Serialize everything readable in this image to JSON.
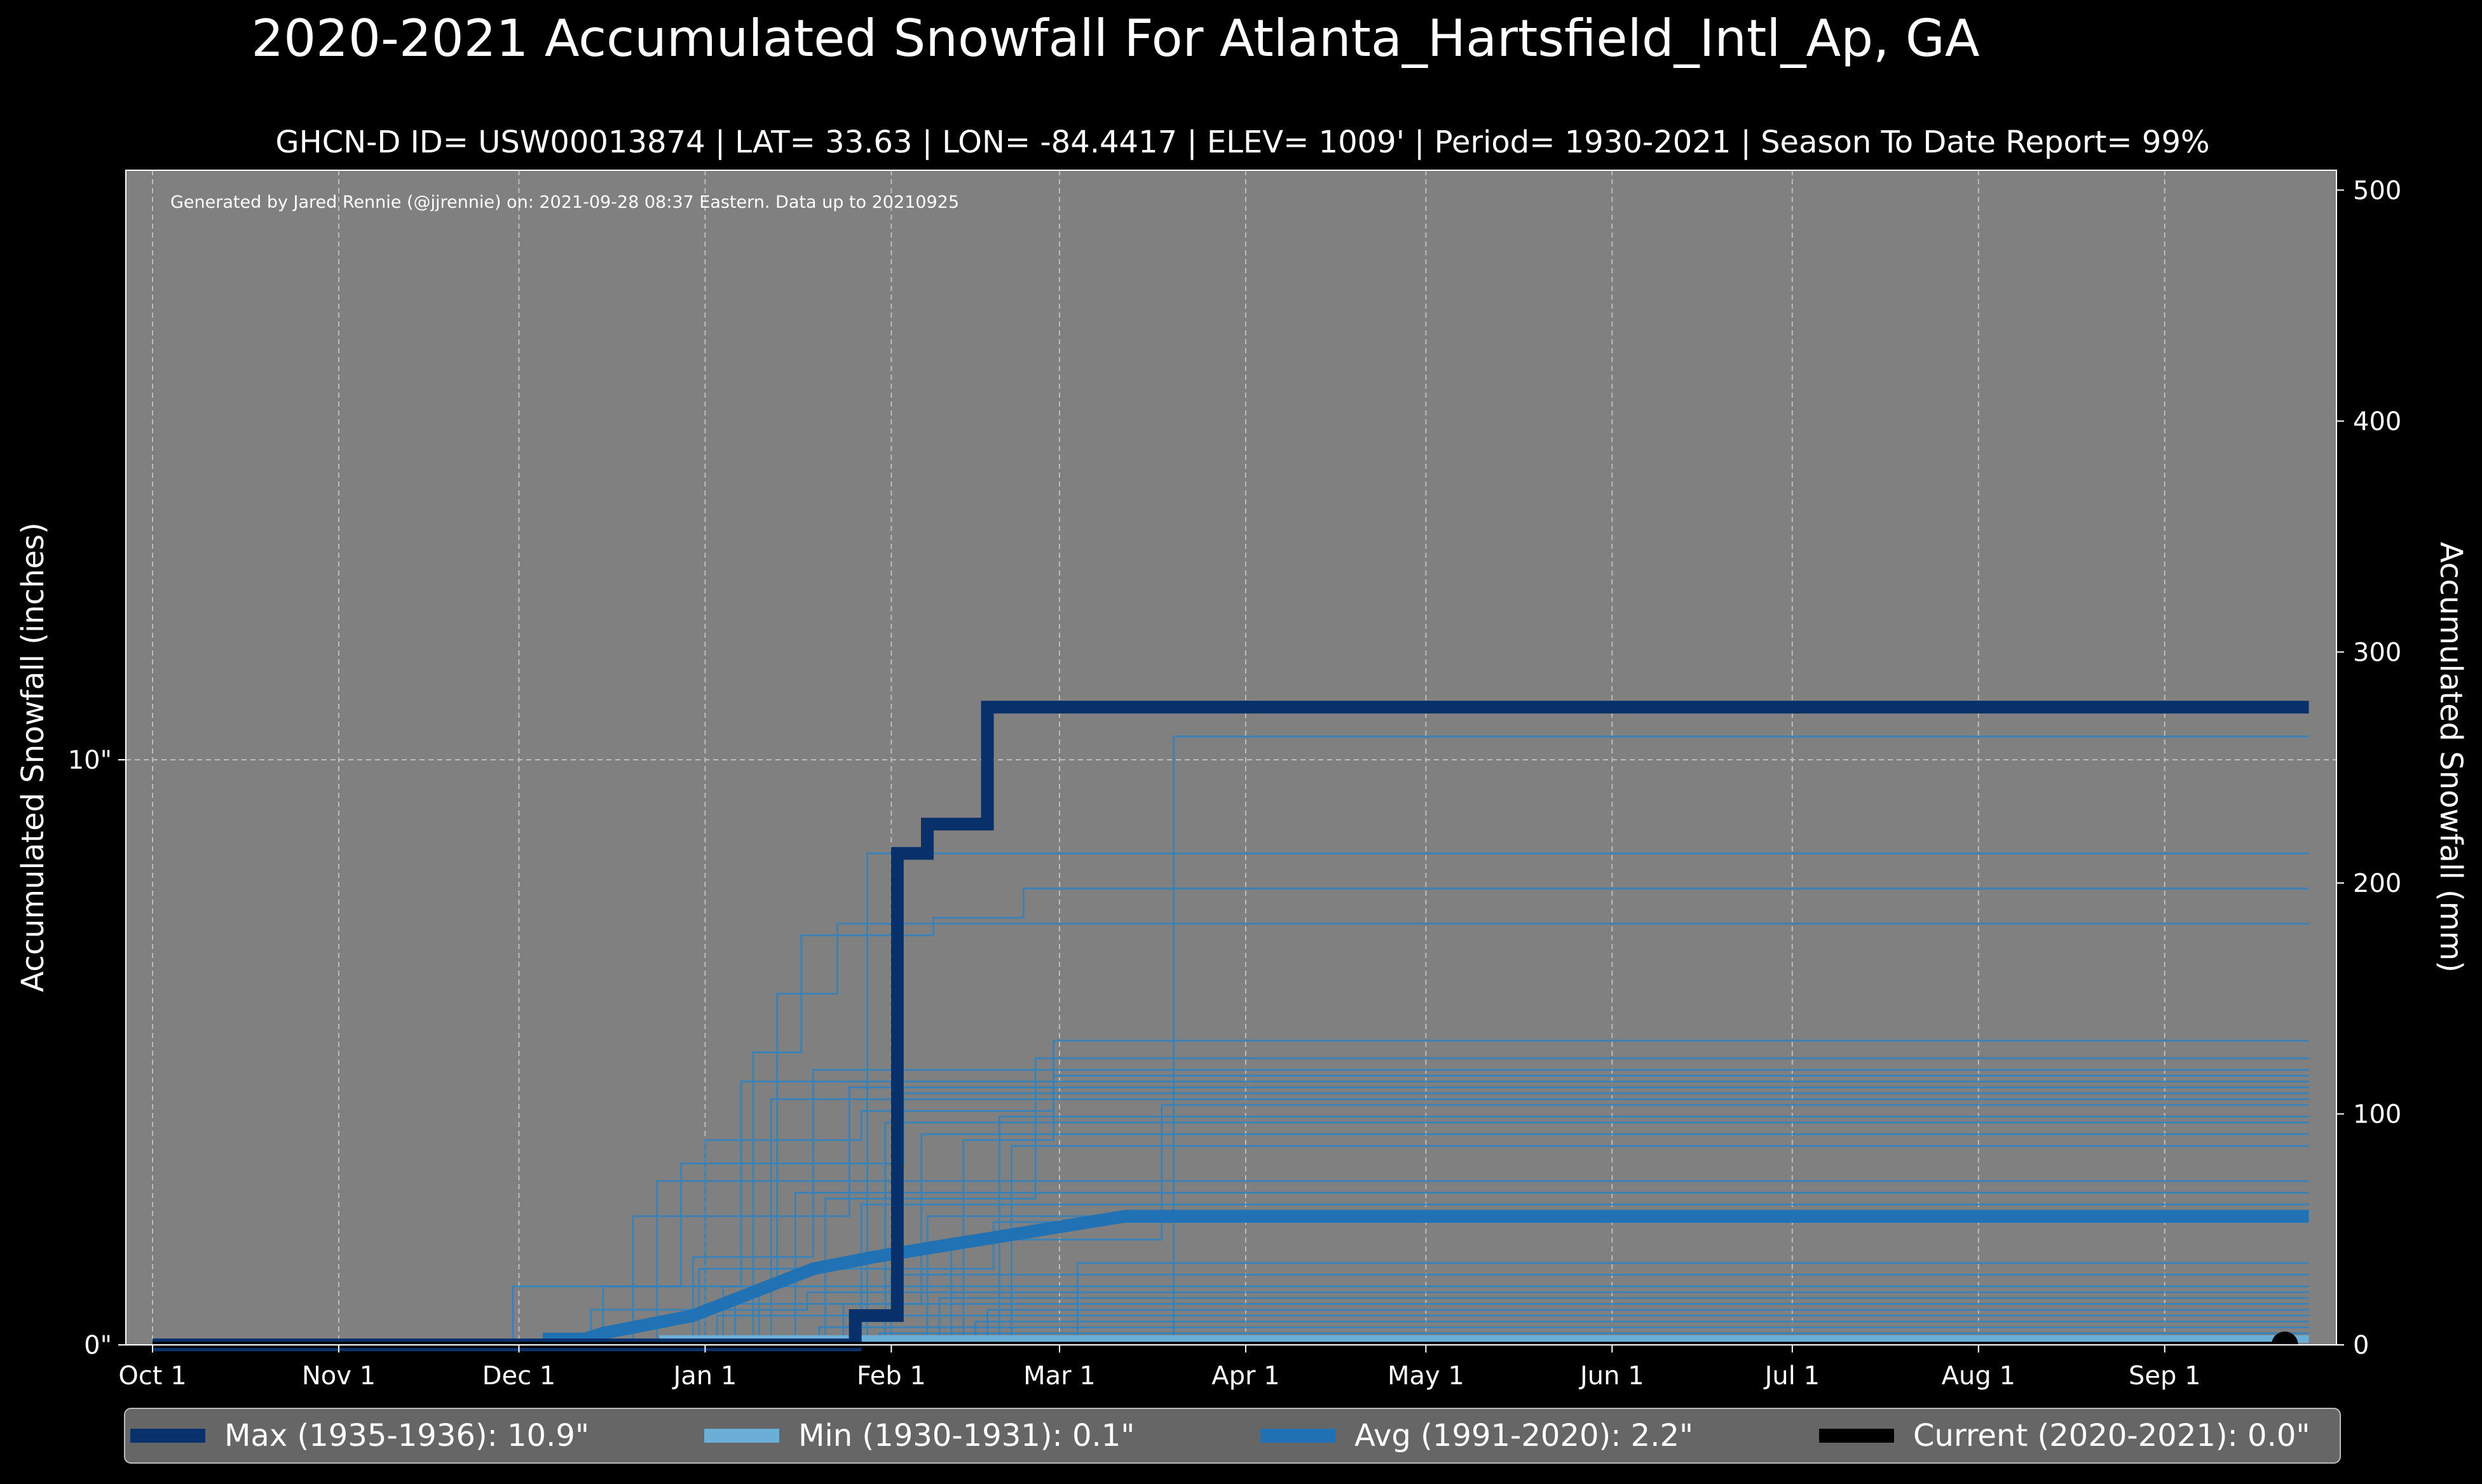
{
  "chart_data": {
    "type": "line",
    "title": "2020-2021 Accumulated Snowfall For Atlanta_Hartsfield_Intl_Ap, GA",
    "subtitle": "GHCN-D ID= USW00013874 | LAT= 33.63 | LON= -84.4417 | ELEV= 1009' | Period= 1930-2021 | Season To Date Report= 99%",
    "credit": "Generated by Jared Rennie (@jjrennie) on: 2021-09-28 08:37 Eastern. Data up to 20210925",
    "ylabel_left": "Accumulated Snowfall (inches)",
    "ylabel_right": "Accumulated Snowfall (mm)",
    "x_ticks": [
      "Oct 1",
      "Nov 1",
      "Dec 1",
      "Jan 1",
      "Feb 1",
      "Mar 1",
      "Apr 1",
      "May 1",
      "Jun 1",
      "Jul 1",
      "Aug 1",
      "Sep 1"
    ],
    "y_ticks_left": [
      "0\"",
      "10\""
    ],
    "y_ticks_right": [
      "0",
      "100",
      "200",
      "300",
      "400",
      "500"
    ],
    "ylim_inches": [
      0,
      20
    ],
    "grid": true,
    "legend_placement": "bottom",
    "colors": {
      "max": "#08306b",
      "min": "#6baed6",
      "avg": "#2171b5",
      "current": "#000000",
      "history": "#3182bd",
      "panel": "#808080"
    },
    "series": [
      {
        "name": "Max (1935-1936)",
        "legend": "Max (1935-1936):   10.9\"",
        "role": "max",
        "points": [
          [
            0,
            0
          ],
          [
            117,
            0
          ],
          [
            117,
            0.5
          ],
          [
            124,
            0.5
          ],
          [
            124,
            8.4
          ],
          [
            129,
            8.4
          ],
          [
            129,
            8.9
          ],
          [
            139,
            8.9
          ],
          [
            139,
            10.9
          ],
          [
            359,
            10.9
          ]
        ]
      },
      {
        "name": "Min (1930-1931)",
        "legend": "Min (1930-1931):    0.1\"",
        "role": "min",
        "points": [
          [
            0,
            0
          ],
          [
            85,
            0
          ],
          [
            85,
            0.1
          ],
          [
            359,
            0.1
          ]
        ]
      },
      {
        "name": "Avg (1991-2020)",
        "legend": "Avg (1991-2020):    2.2\"",
        "role": "avg",
        "points": [
          [
            0,
            0
          ],
          [
            66,
            0
          ],
          [
            66,
            0.1
          ],
          [
            72,
            0.1
          ],
          [
            75,
            0.2
          ],
          [
            80,
            0.3
          ],
          [
            85,
            0.4
          ],
          [
            90,
            0.5
          ],
          [
            95,
            0.7
          ],
          [
            100,
            0.9
          ],
          [
            105,
            1.1
          ],
          [
            110,
            1.3
          ],
          [
            115,
            1.4
          ],
          [
            120,
            1.5
          ],
          [
            126,
            1.6
          ],
          [
            132,
            1.7
          ],
          [
            138,
            1.8
          ],
          [
            144,
            1.9
          ],
          [
            150,
            2.0
          ],
          [
            156,
            2.1
          ],
          [
            162,
            2.2
          ],
          [
            359,
            2.2
          ]
        ]
      },
      {
        "name": "Current (2020-2021)",
        "legend": "Current (2020-2021): 0.0\"",
        "role": "current",
        "points": [
          [
            0,
            0
          ],
          [
            355,
            0
          ]
        ]
      }
    ],
    "history_series": [
      [
        [
          0,
          0
        ],
        [
          119,
          0
        ],
        [
          119,
          8.4
        ],
        [
          359,
          8.4
        ]
      ],
      [
        [
          0,
          0
        ],
        [
          170,
          0
        ],
        [
          170,
          10.4
        ],
        [
          359,
          10.4
        ]
      ],
      [
        [
          0,
          0
        ],
        [
          100,
          0
        ],
        [
          100,
          5.0
        ],
        [
          108,
          5.0
        ],
        [
          108,
          7.0
        ],
        [
          130,
          7.0
        ],
        [
          130,
          7.3
        ],
        [
          145,
          7.3
        ],
        [
          145,
          7.8
        ],
        [
          359,
          7.8
        ]
      ],
      [
        [
          0,
          0
        ],
        [
          95,
          0
        ],
        [
          95,
          1.0
        ],
        [
          104,
          1.0
        ],
        [
          104,
          6.0
        ],
        [
          114,
          6.0
        ],
        [
          114,
          7.2
        ],
        [
          359,
          7.2
        ]
      ],
      [
        [
          0,
          0
        ],
        [
          92,
          0
        ],
        [
          92,
          3.5
        ],
        [
          118,
          3.5
        ],
        [
          118,
          4.0
        ],
        [
          150,
          4.0
        ],
        [
          150,
          5.2
        ],
        [
          359,
          5.2
        ]
      ],
      [
        [
          0,
          0
        ],
        [
          90,
          0
        ],
        [
          90,
          1.5
        ],
        [
          110,
          1.5
        ],
        [
          110,
          4.7
        ],
        [
          359,
          4.7
        ]
      ],
      [
        [
          0,
          0
        ],
        [
          75,
          0
        ],
        [
          75,
          1.0
        ],
        [
          98,
          1.0
        ],
        [
          98,
          4.5
        ],
        [
          359,
          4.5
        ]
      ],
      [
        [
          0,
          0
        ],
        [
          80,
          0
        ],
        [
          80,
          2.2
        ],
        [
          116,
          2.2
        ],
        [
          116,
          4.4
        ],
        [
          359,
          4.4
        ]
      ],
      [
        [
          0,
          0
        ],
        [
          60,
          0
        ],
        [
          60,
          1.0
        ],
        [
          88,
          1.0
        ],
        [
          88,
          3.1
        ],
        [
          125,
          3.1
        ],
        [
          125,
          4.3
        ],
        [
          359,
          4.3
        ]
      ],
      [
        [
          0,
          0
        ],
        [
          112,
          0
        ],
        [
          112,
          2.5
        ],
        [
          147,
          2.5
        ],
        [
          147,
          4.9
        ],
        [
          359,
          4.9
        ]
      ],
      [
        [
          0,
          0
        ],
        [
          103,
          0
        ],
        [
          103,
          4.2
        ],
        [
          359,
          4.2
        ]
      ],
      [
        [
          0,
          0
        ],
        [
          135,
          0
        ],
        [
          135,
          3.5
        ],
        [
          150,
          3.5
        ],
        [
          150,
          4.6
        ],
        [
          359,
          4.6
        ]
      ],
      [
        [
          0,
          0
        ],
        [
          133,
          0
        ],
        [
          133,
          1.8
        ],
        [
          168,
          1.8
        ],
        [
          168,
          4.1
        ],
        [
          359,
          4.1
        ]
      ],
      [
        [
          0,
          0
        ],
        [
          141,
          0
        ],
        [
          141,
          3.9
        ],
        [
          359,
          3.9
        ]
      ],
      [
        [
          0,
          0
        ],
        [
          122,
          0
        ],
        [
          122,
          3.8
        ],
        [
          359,
          3.8
        ]
      ],
      [
        [
          0,
          0
        ],
        [
          97,
          0
        ],
        [
          97,
          0.7
        ],
        [
          128,
          0.7
        ],
        [
          128,
          3.6
        ],
        [
          359,
          3.6
        ]
      ],
      [
        [
          0,
          0
        ],
        [
          143,
          0
        ],
        [
          143,
          3.4
        ],
        [
          359,
          3.4
        ]
      ],
      [
        [
          0,
          0
        ],
        [
          84,
          0
        ],
        [
          84,
          2.8
        ],
        [
          359,
          2.8
        ]
      ],
      [
        [
          0,
          0
        ],
        [
          107,
          0
        ],
        [
          107,
          2.6
        ],
        [
          359,
          2.6
        ]
      ],
      [
        [
          0,
          0
        ],
        [
          118,
          0
        ],
        [
          118,
          2.4
        ],
        [
          359,
          2.4
        ]
      ],
      [
        [
          0,
          0
        ],
        [
          129,
          0
        ],
        [
          129,
          2.2
        ],
        [
          359,
          2.2
        ]
      ],
      [
        [
          0,
          0
        ],
        [
          91,
          0
        ],
        [
          91,
          1.3
        ],
        [
          140,
          1.3
        ],
        [
          140,
          2.1
        ],
        [
          359,
          2.1
        ]
      ],
      [
        [
          0,
          0
        ],
        [
          154,
          0
        ],
        [
          154,
          1.4
        ],
        [
          359,
          1.4
        ]
      ],
      [
        [
          0,
          0
        ],
        [
          123,
          0
        ],
        [
          123,
          1.2
        ],
        [
          359,
          1.2
        ]
      ],
      [
        [
          0,
          0
        ],
        [
          101,
          0
        ],
        [
          101,
          1.0
        ],
        [
          359,
          1.0
        ]
      ],
      [
        [
          0,
          0
        ],
        [
          73,
          0
        ],
        [
          73,
          0.6
        ],
        [
          109,
          0.6
        ],
        [
          109,
          0.9
        ],
        [
          359,
          0.9
        ]
      ],
      [
        [
          0,
          0
        ],
        [
          131,
          0
        ],
        [
          131,
          0.8
        ],
        [
          359,
          0.8
        ]
      ],
      [
        [
          0,
          0
        ],
        [
          115,
          0
        ],
        [
          115,
          0.7
        ],
        [
          359,
          0.7
        ]
      ],
      [
        [
          0,
          0
        ],
        [
          139,
          0
        ],
        [
          139,
          0.6
        ],
        [
          359,
          0.6
        ]
      ],
      [
        [
          0,
          0
        ],
        [
          94,
          0
        ],
        [
          94,
          0.5
        ],
        [
          359,
          0.5
        ]
      ],
      [
        [
          0,
          0
        ],
        [
          137,
          0
        ],
        [
          137,
          0.4
        ],
        [
          359,
          0.4
        ]
      ],
      [
        [
          0,
          0
        ],
        [
          111,
          0
        ],
        [
          111,
          0.3
        ],
        [
          359,
          0.3
        ]
      ],
      [
        [
          0,
          0
        ],
        [
          121,
          0
        ],
        [
          121,
          0.2
        ],
        [
          359,
          0.2
        ]
      ]
    ]
  }
}
